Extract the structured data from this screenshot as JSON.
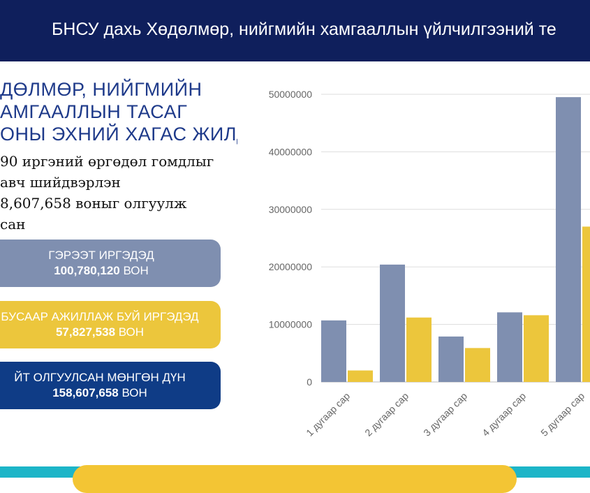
{
  "header": {
    "title": "БНСУ дахь Хөдөлмөр, нийгмийн хамгааллын үйлчилгээний те"
  },
  "heading": {
    "lines": [
      "ДӨЛМӨР, НИЙГМИЙН",
      "АМГААЛЛЫН ТАСАГ",
      "ОНЫ ЭХНИЙ ХАГАС ЖИЛД"
    ]
  },
  "description": {
    "lines": [
      "90 иргэний өргөдөл гомдлыг",
      "авч шийдвэрлэн",
      "8,607,658 воныг олгуулж",
      "сан"
    ]
  },
  "cards": [
    {
      "label": "ГЭРЭЭТ ИРГЭДЭД",
      "amount": "100,780,120",
      "unit": "ВОН"
    },
    {
      "label": "БУСААР АЖИЛЛАЖ БУЙ ИРГЭДЭД",
      "amount": "57,827,538",
      "unit": "ВОН"
    },
    {
      "label": "ЙТ ОЛГУУЛСАН МӨНГӨН ДҮН",
      "amount": "158,607,658",
      "unit": "ВОН"
    }
  ],
  "colors": {
    "header": "#0f1f5c",
    "series_a": "#7f8fb0",
    "series_b": "#ecc63c",
    "total": "#0f3c86"
  },
  "chart_data": {
    "type": "bar",
    "categories": [
      "1 дугаар сар",
      "2 дугаар сар",
      "3 дугаар сар",
      "4 дугаар сар",
      "5 дугаар сар"
    ],
    "series": [
      {
        "values": [
          10700000,
          20400000,
          7900000,
          12100000,
          49500000
        ]
      },
      {
        "values": [
          2000000,
          11200000,
          5900000,
          11600000,
          27000000
        ]
      }
    ],
    "yticks": [
      "0",
      "10000000",
      "20000000",
      "30000000",
      "40000000",
      "50000000"
    ],
    "ylim": [
      0,
      50000000
    ],
    "grid": true,
    "legend": "none"
  }
}
